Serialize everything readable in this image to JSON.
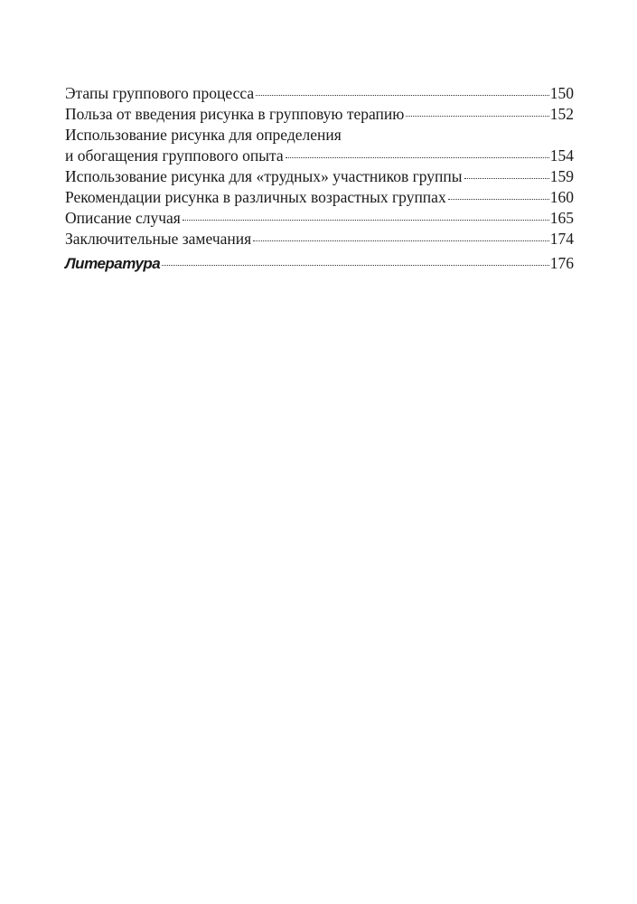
{
  "toc": {
    "entries": [
      {
        "title": "Этапы группового процесса",
        "page": "150"
      },
      {
        "title": "Польза от введения рисунка в групповую терапию",
        "page": "152"
      },
      {
        "title_line1": "Использование рисунка для определения",
        "title": "и обогащения группового опыта",
        "page": "154"
      },
      {
        "title": "Использование рисунка для «трудных» участников группы",
        "page": "159"
      },
      {
        "title": "Рекомендации рисунка в различных возрастных группах",
        "page": "160"
      },
      {
        "title": "Описание случая",
        "page": "165"
      },
      {
        "title": "Заключительные замечания",
        "page": "174"
      }
    ],
    "bibliography": {
      "title": "Литература",
      "page": "176"
    }
  }
}
